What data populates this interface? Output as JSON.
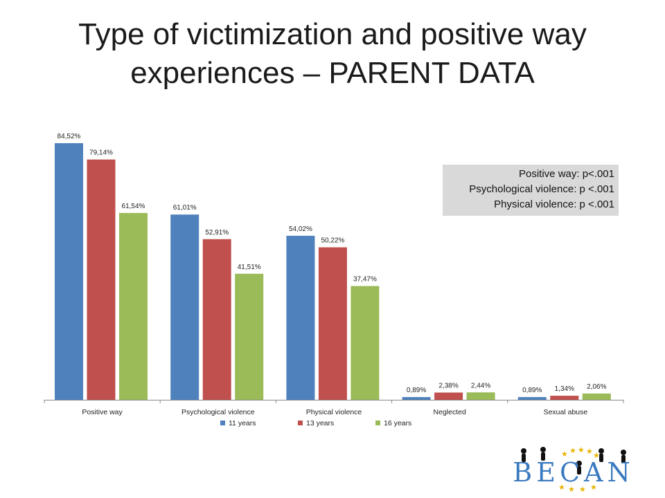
{
  "slide": {
    "title_line1": "Type of victimization and positive way",
    "title_line2": "experiences – PARENT DATA"
  },
  "stats_box": [
    "Positive way: p<.001",
    "Psychological violence: p <.001",
    "Physical violence: p <.001"
  ],
  "logo_text": "BECAN",
  "colors": {
    "11 years": "#4f81bd",
    "13 years": "#c0504d",
    "16 years": "#9bbb59"
  },
  "chart_data": {
    "type": "bar",
    "categories": [
      "Positive way",
      "Psychological violence",
      "Physical violence",
      "Neglected",
      "Sexual abuse"
    ],
    "series": [
      {
        "name": "11 years",
        "values": [
          84.52,
          61.01,
          54.02,
          0.89,
          0.89
        ],
        "labels": [
          "84,52%",
          "61,01%",
          "54,02%",
          "0,89%",
          "0,89%"
        ]
      },
      {
        "name": "13 years",
        "values": [
          79.14,
          52.91,
          50.22,
          2.38,
          1.34
        ],
        "labels": [
          "79,14%",
          "52,91%",
          "50,22%",
          "2,38%",
          "1,34%"
        ]
      },
      {
        "name": "16 years",
        "values": [
          61.54,
          41.51,
          37.47,
          2.44,
          2.06
        ],
        "labels": [
          "61,54%",
          "41,51%",
          "37,47%",
          "2,44%",
          "2,06%"
        ]
      }
    ],
    "title": "",
    "xlabel": "",
    "ylabel": "",
    "ylim": [
      0,
      84.52
    ],
    "grid": false,
    "legend_position": "bottom"
  }
}
